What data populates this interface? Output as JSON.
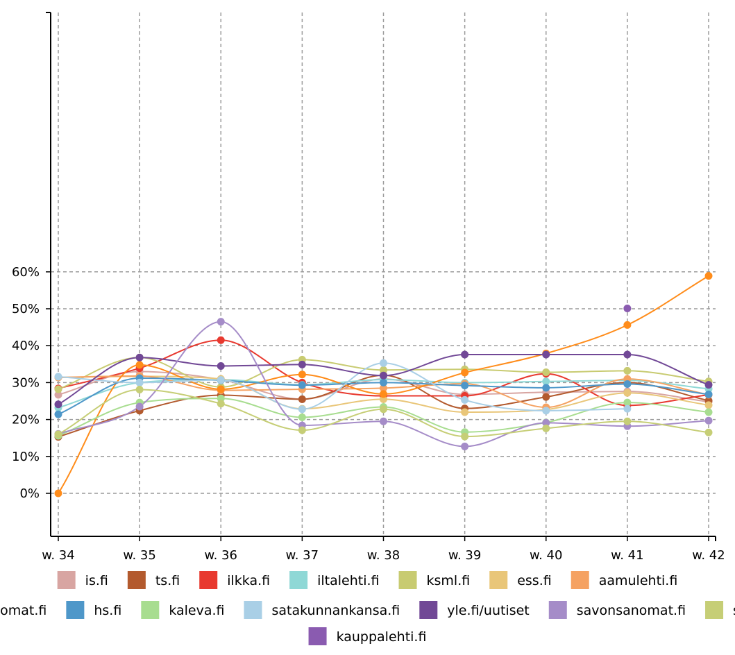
{
  "chart_data": {
    "type": "line",
    "title": "",
    "xlabel": "",
    "ylabel": "",
    "categories": [
      "w. 34",
      "w. 35",
      "w. 36",
      "w. 37",
      "w. 38",
      "w. 39",
      "w. 40",
      "w. 41",
      "w. 42"
    ],
    "y_ticks": [
      "0%",
      "10%",
      "20%",
      "30%",
      "40%",
      "50%",
      "60%"
    ],
    "ylim": [
      -6,
      65
    ],
    "unit": "%",
    "grid": "dashed, both axes",
    "legend_position": "bottom",
    "series": [
      {
        "name": "is.fi",
        "color": "#d8a5a2",
        "values": [
          26.7,
          33.0,
          30.8,
          25.5,
          31.0,
          26.8,
          27.4,
          27.6,
          24.8
        ]
      },
      {
        "name": "ts.fi",
        "color": "#b35a2e",
        "values": [
          15.3,
          22.4,
          26.6,
          25.5,
          32.0,
          23.0,
          26.1,
          30.0,
          25.1
        ]
      },
      {
        "name": "ilkka.fi",
        "color": "#e8392f",
        "values": [
          28.4,
          33.9,
          41.5,
          30.0,
          26.4,
          26.4,
          32.4,
          23.8,
          26.7
        ]
      },
      {
        "name": "iltalehti.fi",
        "color": "#8fd8d6",
        "values": [
          23.2,
          30.0,
          30.8,
          29.4,
          30.8,
          30.0,
          30.3,
          30.6,
          28.3
        ]
      },
      {
        "name": "ksml.fi",
        "color": "#c8cb71",
        "values": [
          28.2,
          36.8,
          28.8,
          36.2,
          33.4,
          33.6,
          32.8,
          33.2,
          30.3
        ]
      },
      {
        "name": "ess.fi",
        "color": "#e9c679",
        "values": [
          31.4,
          31.7,
          31.0,
          22.9,
          25.5,
          22.0,
          22.7,
          27.2,
          23.9
        ]
      },
      {
        "name": "aamulehti.fi",
        "color": "#f5a262",
        "values": [
          31.4,
          31.8,
          27.9,
          28.2,
          28.5,
          29.7,
          23.3,
          31.0,
          26.7
        ]
      },
      {
        "name": "koillissanomat.fi",
        "color": "#ff8c1a",
        "values": [
          0.0,
          34.8,
          28.2,
          32.2,
          26.9,
          32.7,
          37.9,
          45.6,
          58.9
        ]
      },
      {
        "name": "hs.fi",
        "color": "#4e97c9",
        "values": [
          21.4,
          31.2,
          30.6,
          29.3,
          30.0,
          29.2,
          28.6,
          29.6,
          26.8
        ]
      },
      {
        "name": "kaleva.fi",
        "color": "#a8dd90",
        "values": [
          15.6,
          24.6,
          25.7,
          20.6,
          23.4,
          16.6,
          19.2,
          24.6,
          22.0
        ]
      },
      {
        "name": "satakunnankansa.fi",
        "color": "#a9cfe6",
        "values": [
          31.6,
          30.0,
          30.7,
          22.8,
          35.3,
          25.3,
          22.4,
          22.9,
          null
        ]
      },
      {
        "name": "yle.fi/uutiset",
        "color": "#714896",
        "values": [
          24.1,
          36.8,
          34.5,
          34.9,
          31.9,
          37.6,
          37.6,
          37.6,
          29.4
        ]
      },
      {
        "name": "savonsanomat.fi",
        "color": "#a58cc8",
        "values": [
          16.1,
          23.5,
          46.5,
          18.4,
          19.5,
          12.7,
          19.1,
          18.2,
          19.7
        ]
      },
      {
        "name": "svenska.yle.fi",
        "color": "#c6ce76",
        "values": [
          16.0,
          28.1,
          24.3,
          17.1,
          22.8,
          15.4,
          17.6,
          19.5,
          16.5
        ]
      },
      {
        "name": "kauppalehti.fi",
        "color": "#8a5bb0",
        "values": [
          null,
          null,
          null,
          null,
          null,
          null,
          null,
          50.1,
          null
        ]
      }
    ]
  }
}
